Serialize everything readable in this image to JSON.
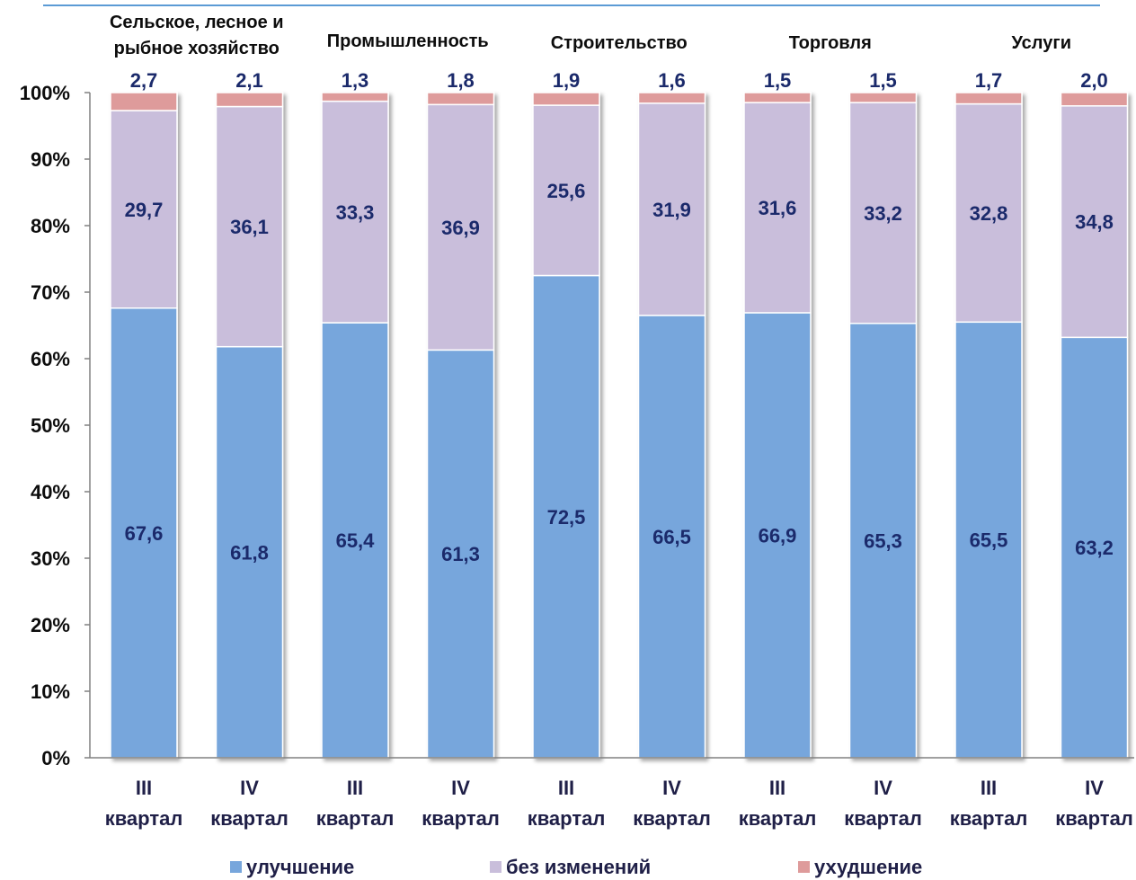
{
  "chart_data": {
    "type": "bar",
    "stacked": true,
    "percent_stacked": true,
    "groups": [
      "Сельское, лесное и рыбное хозяйство",
      "Промышленность",
      "Строительство",
      "Торговля",
      "Услуги"
    ],
    "group_lines": [
      [
        "Сельское, лесное и",
        "рыбное хозяйство"
      ],
      [
        "Промышленность"
      ],
      [
        "Строительство"
      ],
      [
        "Торговля"
      ],
      [
        "Услуги"
      ]
    ],
    "categories": [
      "III квартал",
      "IV квартал",
      "III квартал",
      "IV квартал",
      "III квартал",
      "IV квартал",
      "III квартал",
      "IV квартал",
      "III квартал",
      "IV квартал"
    ],
    "category_lines": [
      [
        "III",
        "квартал"
      ],
      [
        "IV",
        "квартал"
      ],
      [
        "III",
        "квартал"
      ],
      [
        "IV",
        "квартал"
      ],
      [
        "III",
        "квартал"
      ],
      [
        "IV",
        "квартал"
      ],
      [
        "III",
        "квартал"
      ],
      [
        "IV",
        "квартал"
      ],
      [
        "III",
        "квартал"
      ],
      [
        "IV",
        "квартал"
      ]
    ],
    "series": [
      {
        "name": "улучшение",
        "color": "#77a6dc",
        "values": [
          67.6,
          61.8,
          65.4,
          61.3,
          72.5,
          66.5,
          66.9,
          65.3,
          65.5,
          63.2
        ],
        "labels": [
          "67,6",
          "61,8",
          "65,4",
          "61,3",
          "72,5",
          "66,5",
          "66,9",
          "65,3",
          "65,5",
          "63,2"
        ]
      },
      {
        "name": "без изменений",
        "color": "#c9bedb",
        "values": [
          29.7,
          36.1,
          33.3,
          36.9,
          25.6,
          31.9,
          31.6,
          33.2,
          32.8,
          34.8
        ],
        "labels": [
          "29,7",
          "36,1",
          "33,3",
          "36,9",
          "25,6",
          "31,9",
          "31,6",
          "33,2",
          "32,8",
          "34,8"
        ]
      },
      {
        "name": "ухудшение",
        "color": "#de9b9b",
        "values": [
          2.7,
          2.1,
          1.3,
          1.8,
          1.9,
          1.6,
          1.5,
          1.5,
          1.7,
          2.0
        ],
        "labels": [
          "2,7",
          "2,1",
          "1,3",
          "1,8",
          "1,9",
          "1,6",
          "1,5",
          "1,5",
          "1,7",
          "2,0"
        ]
      }
    ],
    "y_ticks": [
      "0%",
      "10%",
      "20%",
      "30%",
      "40%",
      "50%",
      "60%",
      "70%",
      "80%",
      "90%",
      "100%"
    ],
    "ylim": [
      0,
      100
    ],
    "grid": false,
    "legend_position": "bottom",
    "title": "",
    "xlabel": "",
    "ylabel": "",
    "header_rule_color": "#5b9bd5",
    "label_color": "#1b2a6b"
  }
}
